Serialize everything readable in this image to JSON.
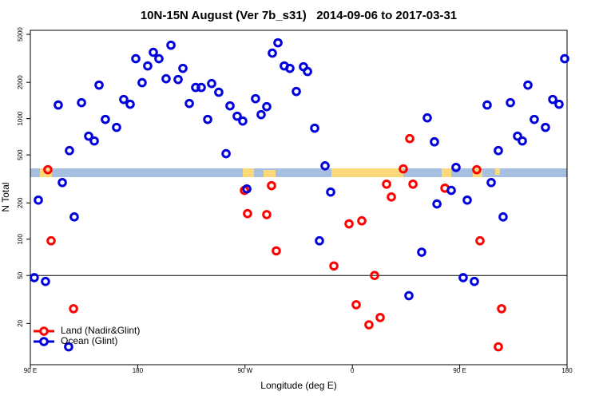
{
  "chart_data": {
    "type": "scatter",
    "title": "10N-15N August (Ver 7b_s31)   2014-09-06 to 2017-03-31",
    "x_label": "Longitude (deg E)",
    "y_label": "N Total",
    "xlim": [
      90,
      540
    ],
    "ylim": [
      9.1,
      5400
    ],
    "y_scale": "log",
    "xticks": [
      {
        "value": 90,
        "label": "90 E"
      },
      {
        "value": 180,
        "label": "180"
      },
      {
        "value": 270,
        "label": "90 W"
      },
      {
        "value": 360,
        "label": "0"
      },
      {
        "value": 450,
        "label": "90 E"
      },
      {
        "value": 540,
        "label": "180"
      }
    ],
    "yticks": [
      20,
      50,
      100,
      200,
      500,
      1000,
      2000,
      5000
    ],
    "hline": 50,
    "legend": "lower left",
    "series": [
      {
        "name": "Land (Nadir&Glint)",
        "color": "#ff0000",
        "x": [
          104.7,
          107.4,
          126.2,
          269.5,
          272.1,
          288.2,
          292.2,
          296.2,
          344.5,
          357.2,
          363.2,
          367.9,
          373.9,
          378.6,
          383.3,
          388.7,
          392.7,
          402.7,
          408.1,
          410.8,
          437.6,
          464.3,
          467.0,
          482.4,
          485.1
        ],
        "values": [
          377,
          97,
          26.5,
          254,
          163,
          160,
          278,
          80,
          60,
          134,
          28.6,
          142,
          19.5,
          50,
          22.4,
          286,
          224,
          383,
          683,
          286,
          265,
          377,
          97,
          12.8,
          26.5
        ]
      },
      {
        "name": "Ocean (Glint)",
        "color": "#0000dd",
        "x": [
          93.3,
          96.7,
          102.7,
          113.4,
          116.8,
          122.1,
          122.8,
          126.8,
          132.9,
          138.9,
          143.6,
          147.6,
          152.9,
          162.3,
          168.3,
          173.7,
          178.4,
          183.7,
          188.4,
          193.1,
          197.8,
          203.8,
          207.9,
          213.9,
          217.9,
          223.3,
          228.6,
          233.3,
          238.7,
          242.0,
          248.0,
          254.1,
          257.4,
          263.4,
          268.1,
          271.5,
          278.8,
          283.5,
          288.2,
          292.9,
          297.6,
          302.9,
          307.6,
          313.0,
          319.0,
          322.4,
          328.4,
          332.4,
          337.1,
          341.8,
          407.4,
          418.1,
          422.8,
          428.8,
          430.9,
          442.9,
          446.9,
          452.9,
          456.3,
          462.3,
          473.0,
          476.4,
          482.4,
          486.4,
          492.5,
          498.5,
          502.5,
          507.2,
          512.5,
          521.9,
          528.0,
          533.3,
          538.0
        ],
        "values": [
          48,
          211,
          44.6,
          1297,
          295,
          12.8,
          543,
          153,
          1357,
          715,
          653,
          1897,
          985,
          846,
          1442,
          1316,
          3140,
          1987,
          2735,
          3548,
          3140,
          2142,
          4064,
          2110,
          2612,
          1336,
          1813,
          1813,
          985,
          1954,
          1655,
          512,
          1276,
          1047,
          955,
          261,
          1464,
          1079,
          1257,
          3493,
          4256,
          2735,
          2612,
          1679,
          2693,
          2460,
          833,
          97,
          406,
          246,
          34,
          78,
          1015,
          642,
          196,
          254,
          394,
          48,
          211,
          44.6,
          1297,
          295,
          543,
          153,
          1357,
          715,
          653,
          1897,
          985,
          846,
          1442,
          1316,
          3140
        ]
      }
    ]
  }
}
